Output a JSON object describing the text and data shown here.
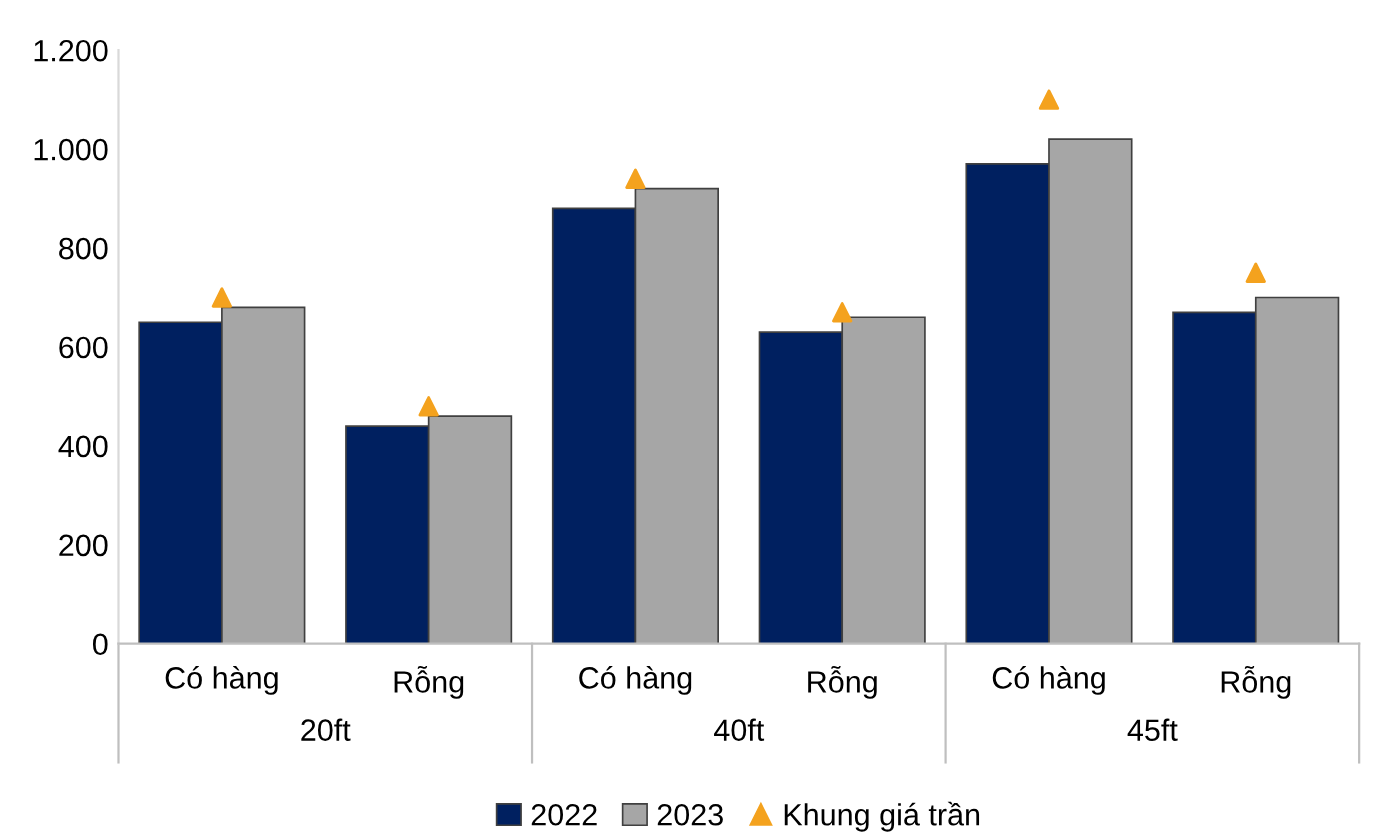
{
  "chart_data": {
    "type": "bar",
    "categories": [
      "Có hàng",
      "Rỗng",
      "Có hàng",
      "Rỗng",
      "Có hàng",
      "Rỗng"
    ],
    "series": [
      {
        "name": "2022",
        "color": "#002060",
        "values": [
          650,
          440,
          880,
          630,
          970,
          670
        ]
      },
      {
        "name": "2023",
        "color": "#a6a6a6",
        "values": [
          680,
          460,
          920,
          660,
          1020,
          700
        ]
      },
      {
        "name": "Khung giá trần",
        "type": "scatter",
        "marker": "triangle",
        "color": "#f4a21e",
        "values": [
          700,
          480,
          940,
          670,
          1100,
          750
        ]
      }
    ],
    "annotations": [
      "20ft",
      "40ft",
      "45ft"
    ],
    "ylim": [
      0,
      1200
    ],
    "yticks": [
      0,
      200,
      400,
      600,
      800,
      {
        "value": 1000,
        "label": "1.000"
      },
      {
        "value": 1200,
        "label": "1.200"
      }
    ],
    "grid": false,
    "legend": "bottom"
  }
}
